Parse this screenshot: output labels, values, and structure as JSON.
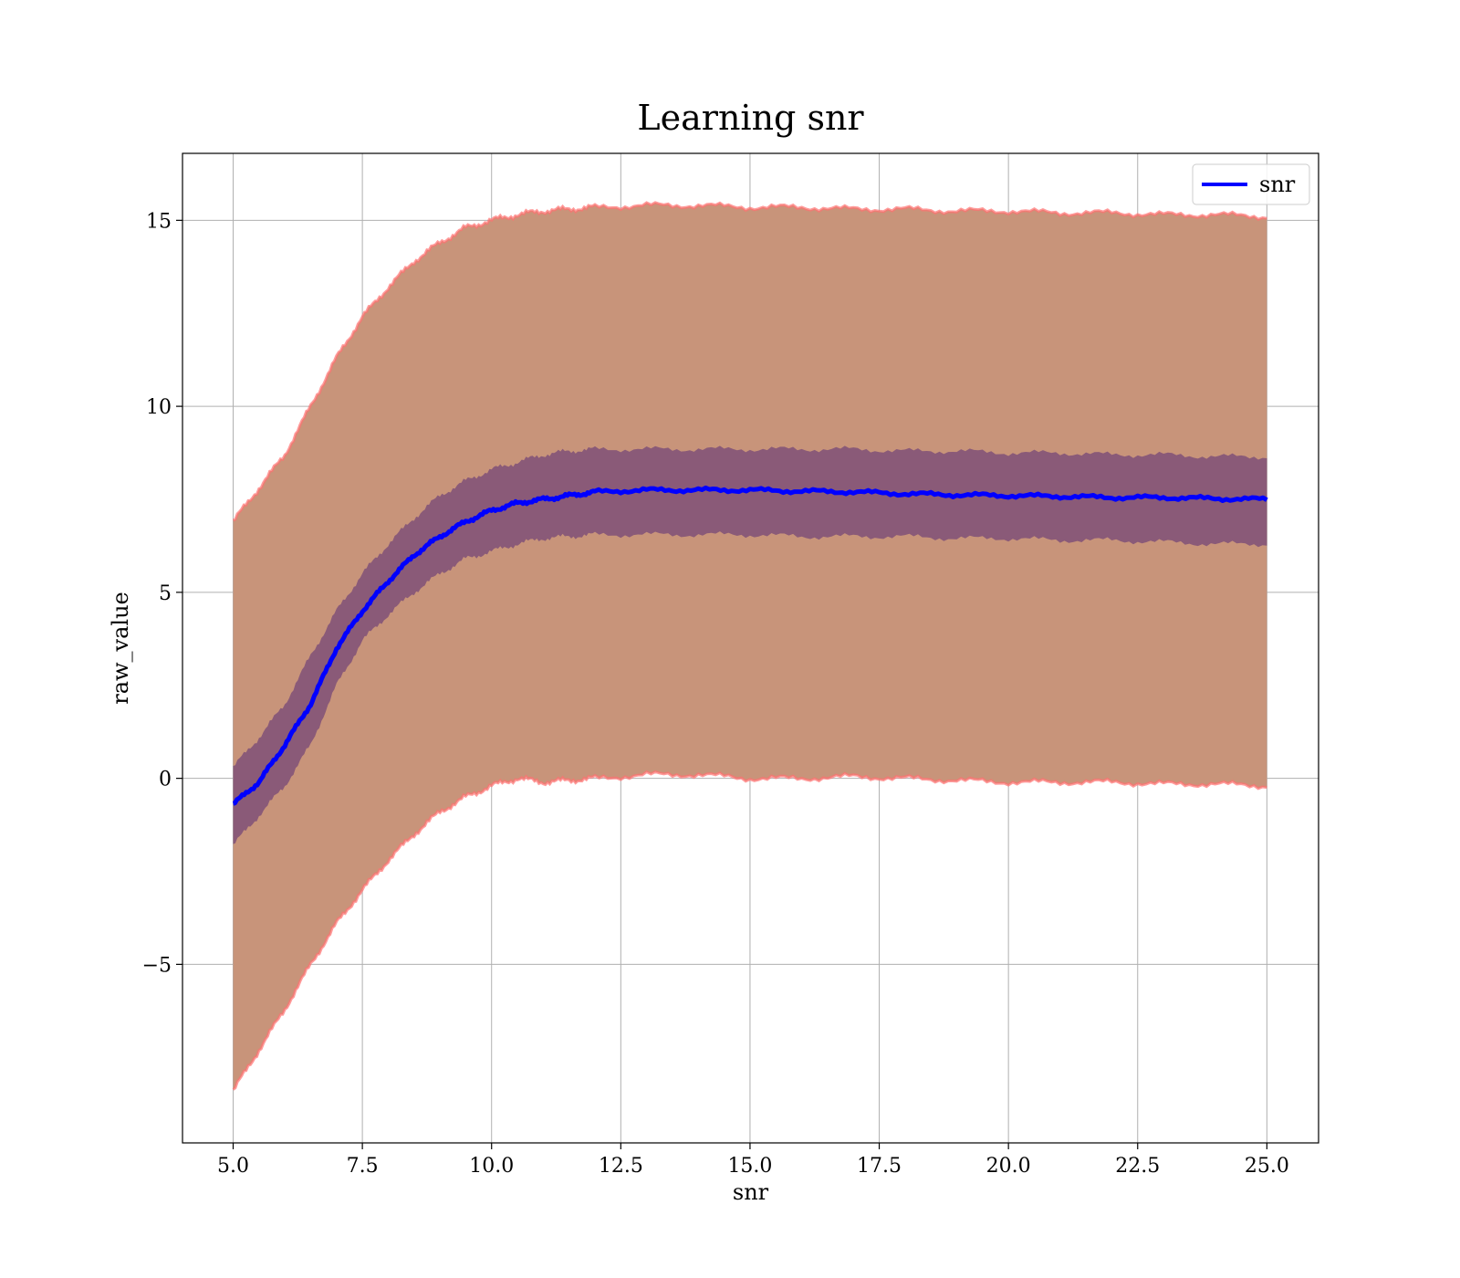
{
  "chart_data": {
    "type": "line",
    "title": "Learning snr",
    "xlabel": "snr",
    "ylabel": "raw_value",
    "xlim": [
      4.02,
      26.0
    ],
    "ylim": [
      -9.8,
      16.8
    ],
    "x_ticks": [
      5.0,
      7.5,
      10.0,
      12.5,
      15.0,
      17.5,
      20.0,
      22.5,
      25.0
    ],
    "x_tick_labels": [
      "5.0",
      "7.5",
      "10.0",
      "12.5",
      "15.0",
      "17.5",
      "20.0",
      "22.5",
      "25.0"
    ],
    "y_ticks": [
      -5,
      0,
      5,
      10,
      15
    ],
    "y_tick_labels": [
      "−5",
      "0",
      "5",
      "10",
      "15"
    ],
    "grid": true,
    "legend_position": "top-right",
    "x": [
      5.0,
      5.5,
      6.0,
      6.5,
      7.0,
      7.5,
      8.0,
      8.5,
      9.0,
      9.5,
      10.0,
      10.5,
      11.0,
      11.5,
      12.0,
      13.0,
      14.0,
      15.0,
      16.0,
      17.0,
      18.0,
      19.0,
      20.0,
      21.0,
      22.0,
      23.0,
      24.0,
      25.0
    ],
    "series": [
      {
        "name": "snr",
        "color": "#0000ff",
        "values": [
          -0.7,
          -0.1,
          0.9,
          2.0,
          3.5,
          4.5,
          5.3,
          6.0,
          6.5,
          6.9,
          7.2,
          7.4,
          7.5,
          7.6,
          7.7,
          7.75,
          7.75,
          7.75,
          7.72,
          7.7,
          7.65,
          7.62,
          7.6,
          7.58,
          7.55,
          7.55,
          7.52,
          7.5
        ]
      }
    ],
    "bands": [
      {
        "kind": "outer",
        "color": "#c8947a",
        "edge_color": "#ff7070",
        "lower": [
          -8.4,
          -7.3,
          -6.2,
          -5.0,
          -3.9,
          -3.0,
          -2.2,
          -1.5,
          -0.9,
          -0.5,
          -0.2,
          0.0,
          -0.1,
          -0.05,
          0.0,
          0.1,
          0.1,
          0.0,
          0.0,
          0.05,
          0.0,
          -0.05,
          -0.1,
          -0.1,
          -0.1,
          -0.15,
          -0.15,
          -0.2
        ],
        "upper": [
          6.9,
          7.8,
          8.7,
          10.0,
          11.3,
          12.4,
          13.2,
          13.9,
          14.4,
          14.8,
          15.0,
          15.15,
          15.25,
          15.3,
          15.35,
          15.4,
          15.4,
          15.35,
          15.35,
          15.3,
          15.3,
          15.25,
          15.25,
          15.2,
          15.2,
          15.15,
          15.15,
          15.1
        ]
      },
      {
        "kind": "inner",
        "color": "#8a5a78",
        "lower": [
          -1.8,
          -1.0,
          -0.2,
          0.9,
          2.5,
          3.7,
          4.4,
          5.0,
          5.5,
          5.9,
          6.1,
          6.3,
          6.45,
          6.5,
          6.55,
          6.55,
          6.55,
          6.55,
          6.5,
          6.5,
          6.5,
          6.45,
          6.45,
          6.4,
          6.4,
          6.35,
          6.3,
          6.3
        ],
        "upper": [
          0.3,
          1.1,
          2.0,
          3.3,
          4.5,
          5.5,
          6.3,
          7.0,
          7.6,
          8.0,
          8.3,
          8.5,
          8.7,
          8.8,
          8.85,
          8.85,
          8.85,
          8.85,
          8.85,
          8.85,
          8.8,
          8.8,
          8.75,
          8.75,
          8.7,
          8.7,
          8.65,
          8.65
        ]
      }
    ]
  }
}
